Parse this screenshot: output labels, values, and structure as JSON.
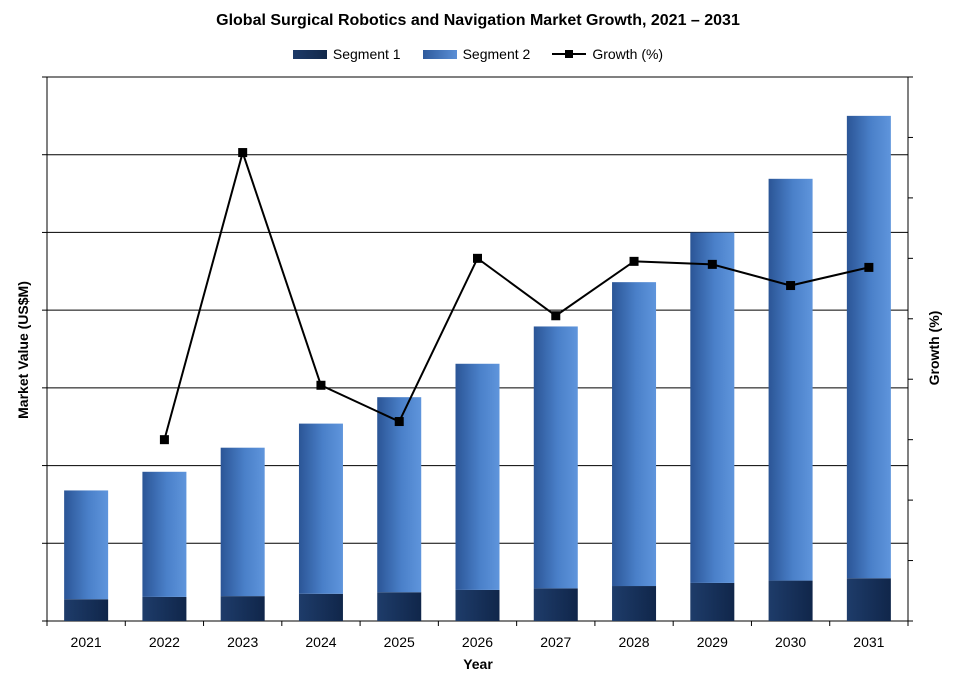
{
  "chart_data": {
    "type": "bar",
    "stacked": true,
    "title": "Global Surgical Robotics and Navigation Market Growth, 2021 – 2031",
    "xlabel": "Year",
    "ylabel": "Market Value (US$M)",
    "y2label": "Growth (%)",
    "legend_position": "top",
    "grid": true,
    "categories": [
      "2021",
      "2022",
      "2023",
      "2024",
      "2025",
      "2026",
      "2027",
      "2028",
      "2029",
      "2030",
      "2031"
    ],
    "ylim": [
      0,
      7
    ],
    "y2lim": [
      0,
      9
    ],
    "series": [
      {
        "name": "Segment 1",
        "type": "bar",
        "color": "#12284a",
        "values": [
          0.28,
          0.31,
          0.32,
          0.35,
          0.37,
          0.4,
          0.42,
          0.45,
          0.49,
          0.52,
          0.55
        ]
      },
      {
        "name": "Segment 2",
        "type": "bar",
        "color": "#4a7fc8",
        "values": [
          1.4,
          1.61,
          1.91,
          2.19,
          2.51,
          2.91,
          3.37,
          3.91,
          4.51,
          5.17,
          5.95
        ]
      },
      {
        "name": "Growth (%)",
        "type": "line",
        "axis": "right",
        "color": "#000000",
        "values": [
          null,
          3.0,
          7.75,
          3.9,
          3.3,
          6.0,
          5.05,
          5.95,
          5.9,
          5.55,
          5.85
        ]
      }
    ]
  }
}
